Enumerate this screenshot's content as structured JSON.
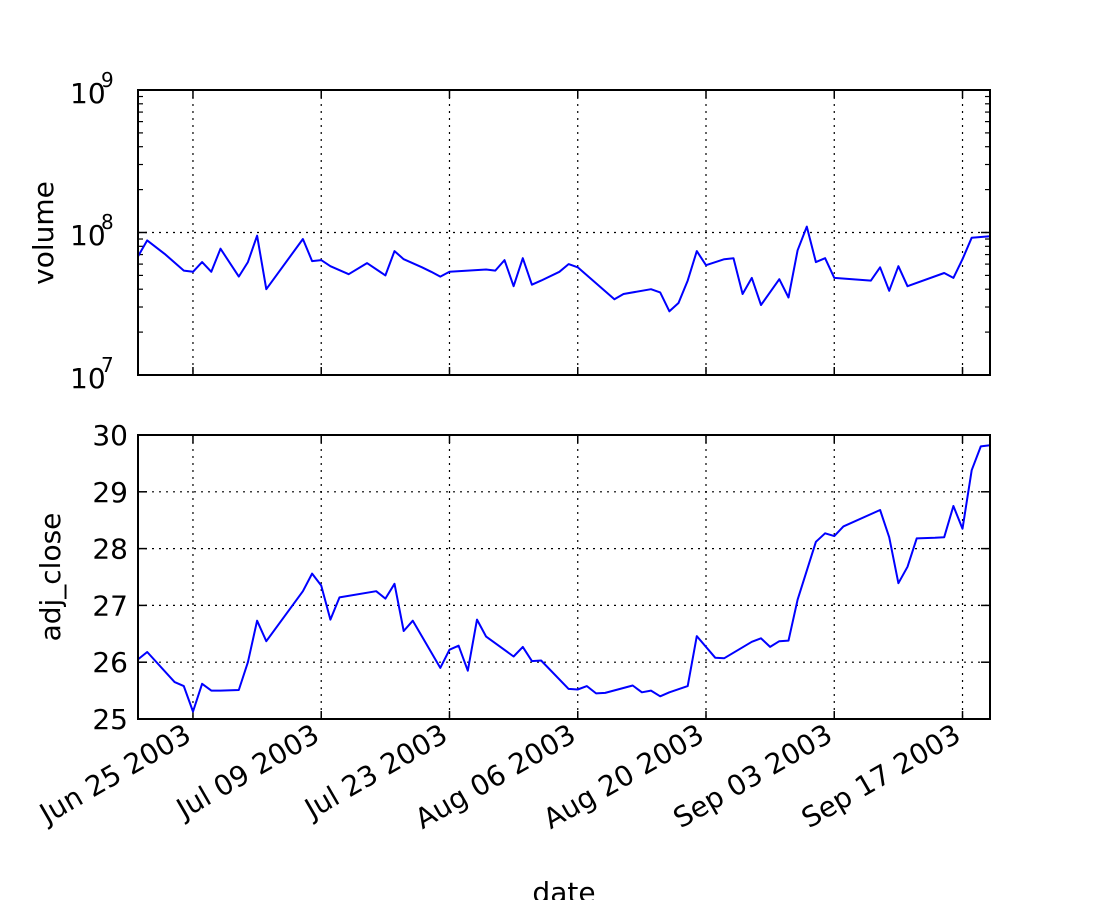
{
  "chart_data": [
    {
      "type": "line",
      "ylabel": "volume",
      "yscale": "log",
      "ylim": [
        10000000,
        1000000000
      ],
      "yticks": [
        {
          "base": "10",
          "exp": "7"
        },
        {
          "base": "10",
          "exp": "8"
        },
        {
          "base": "10",
          "exp": "9"
        }
      ],
      "xlim": [
        "2003-06-21",
        "2003-09-22"
      ],
      "grid": true,
      "color": "#0000ff",
      "series": [
        {
          "x": [
            "2003-06-21",
            "2003-06-22",
            "2003-06-24",
            "2003-06-26",
            "2003-06-27",
            "2003-06-28",
            "2003-06-29",
            "2003-06-30",
            "2003-07-02",
            "2003-07-03",
            "2003-07-04",
            "2003-07-05",
            "2003-07-09",
            "2003-07-10",
            "2003-07-11",
            "2003-07-12",
            "2003-07-14",
            "2003-07-16",
            "2003-07-18",
            "2003-07-19",
            "2003-07-20",
            "2003-07-22",
            "2003-07-23",
            "2003-07-24",
            "2003-07-25",
            "2003-07-29",
            "2003-07-30",
            "2003-07-31",
            "2003-08-01",
            "2003-08-02",
            "2003-08-03",
            "2003-08-04",
            "2003-08-06",
            "2003-08-07",
            "2003-08-08",
            "2003-08-12",
            "2003-08-13",
            "2003-08-16",
            "2003-08-17",
            "2003-08-18",
            "2003-08-19",
            "2003-08-20",
            "2003-08-21",
            "2003-08-22",
            "2003-08-24",
            "2003-08-25",
            "2003-08-26",
            "2003-08-27",
            "2003-08-28",
            "2003-08-30",
            "2003-08-31",
            "2003-09-01",
            "2003-09-02",
            "2003-09-03",
            "2003-09-04",
            "2003-09-05",
            "2003-09-09",
            "2003-09-10",
            "2003-09-11",
            "2003-09-12",
            "2003-09-13",
            "2003-09-17",
            "2003-09-18",
            "2003-09-19",
            "2003-09-20",
            "2003-09-21",
            "2003-09-22"
          ],
          "y": [
            68000000,
            88000000,
            70000000,
            54000000,
            53000000,
            62000000,
            53000000,
            77000000,
            49000000,
            62000000,
            95000000,
            40000000,
            90000000,
            63000000,
            64000000,
            58000000,
            51000000,
            61000000,
            50000000,
            74000000,
            65000000,
            57000000,
            53000000,
            49000000,
            53000000,
            55000000,
            54000000,
            64000000,
            42000000,
            66000000,
            43000000,
            46000000,
            53000000,
            60000000,
            57000000,
            34000000,
            37000000,
            40000000,
            38000000,
            28000000,
            32000000,
            46000000,
            74000000,
            59000000,
            65000000,
            66000000,
            37000000,
            48000000,
            31000000,
            47000000,
            35000000,
            75000000,
            110000000,
            62000000,
            66000000,
            48000000,
            46000000,
            57000000,
            39000000,
            58000000,
            42000000,
            52000000,
            48000000,
            65000000,
            92000000,
            93000000,
            94000000
          ]
        }
      ]
    },
    {
      "type": "line",
      "ylabel": "adj_close",
      "xlabel": "date",
      "ylim": [
        25,
        30
      ],
      "yticks": [
        "25",
        "26",
        "27",
        "28",
        "29",
        "30"
      ],
      "xlim": [
        "2003-06-21",
        "2003-09-22"
      ],
      "xticks": [
        {
          "date": "2003-06-27",
          "label": "Jun 25 2003"
        },
        {
          "date": "2003-07-11",
          "label": "Jul 09 2003"
        },
        {
          "date": "2003-07-25",
          "label": "Jul 23 2003"
        },
        {
          "date": "2003-08-08",
          "label": "Aug 06 2003"
        },
        {
          "date": "2003-08-22",
          "label": "Aug 20 2003"
        },
        {
          "date": "2003-09-05",
          "label": "Sep 03 2003"
        },
        {
          "date": "2003-09-19",
          "label": "Sep 17 2003"
        }
      ],
      "grid": true,
      "color": "#0000ff",
      "series": [
        {
          "x": [
            "2003-06-21",
            "2003-06-22",
            "2003-06-25",
            "2003-06-26",
            "2003-06-27",
            "2003-06-28",
            "2003-06-29",
            "2003-06-30",
            "2003-07-02",
            "2003-07-03",
            "2003-07-04",
            "2003-07-05",
            "2003-07-09",
            "2003-07-10",
            "2003-07-11",
            "2003-07-12",
            "2003-07-13",
            "2003-07-17",
            "2003-07-18",
            "2003-07-19",
            "2003-07-20",
            "2003-07-21",
            "2003-07-24",
            "2003-07-25",
            "2003-07-26",
            "2003-07-27",
            "2003-07-28",
            "2003-07-29",
            "2003-08-01",
            "2003-08-02",
            "2003-08-03",
            "2003-08-04",
            "2003-08-07",
            "2003-08-08",
            "2003-08-09",
            "2003-08-10",
            "2003-08-11",
            "2003-08-14",
            "2003-08-15",
            "2003-08-16",
            "2003-08-17",
            "2003-08-18",
            "2003-08-20",
            "2003-08-21",
            "2003-08-23",
            "2003-08-24",
            "2003-08-27",
            "2003-08-28",
            "2003-08-29",
            "2003-08-30",
            "2003-08-31",
            "2003-09-01",
            "2003-09-03",
            "2003-09-04",
            "2003-09-05",
            "2003-09-06",
            "2003-09-10",
            "2003-09-11",
            "2003-09-12",
            "2003-09-13",
            "2003-09-14",
            "2003-09-16",
            "2003-09-17",
            "2003-09-18",
            "2003-09-19",
            "2003-09-20",
            "2003-09-21",
            "2003-09-22"
          ],
          "y": [
            26.05,
            26.18,
            25.65,
            25.58,
            25.13,
            25.62,
            25.5,
            25.5,
            25.51,
            26.0,
            26.73,
            26.37,
            27.25,
            27.56,
            27.35,
            26.75,
            27.14,
            27.25,
            27.12,
            27.38,
            26.55,
            26.73,
            25.9,
            26.22,
            26.29,
            25.85,
            26.75,
            26.45,
            26.1,
            26.27,
            26.02,
            26.03,
            25.53,
            25.52,
            25.58,
            25.45,
            25.46,
            25.59,
            25.47,
            25.5,
            25.4,
            25.47,
            25.58,
            26.46,
            26.08,
            26.07,
            26.36,
            26.42,
            26.27,
            26.37,
            26.38,
            27.1,
            28.12,
            28.27,
            28.22,
            28.39,
            28.68,
            28.2,
            27.39,
            27.68,
            28.18,
            28.19,
            28.2,
            28.75,
            28.35,
            29.38,
            29.8,
            29.82
          ]
        }
      ]
    }
  ]
}
